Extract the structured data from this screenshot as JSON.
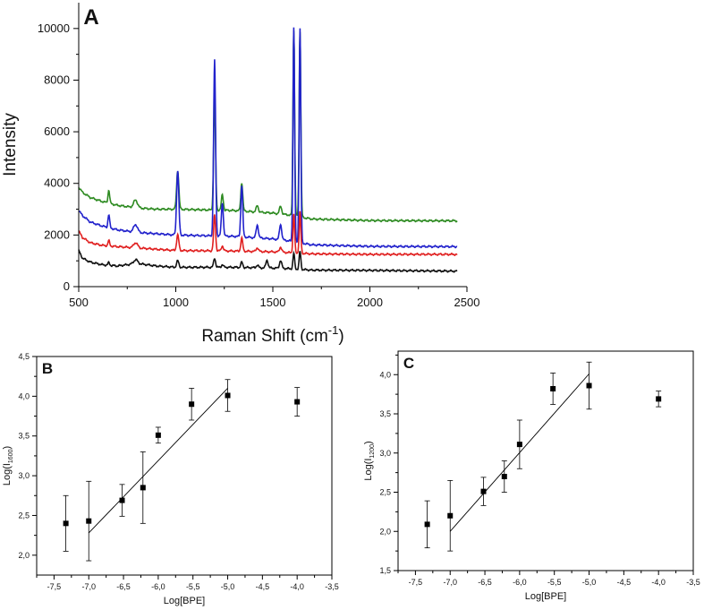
{
  "chart_data": [
    {
      "id": "A",
      "type": "line",
      "panel_label": "A",
      "title": "",
      "xlabel_text": "Raman Shift (cm",
      "xlabel_sup": "-1",
      "xlabel_close": ")",
      "ylabel": "Intensity",
      "xlim": [
        500,
        2500
      ],
      "ylim": [
        0,
        11000
      ],
      "xticks": [
        500,
        1000,
        1500,
        2000,
        2500
      ],
      "yticks": [
        0,
        2000,
        4000,
        6000,
        8000,
        10000
      ],
      "grid": false,
      "legend": "none",
      "series": [
        {
          "name": "green",
          "color": "#2e8b22",
          "baseline": 2550,
          "x": [
            500,
            520,
            560,
            620,
            700,
            800,
            900,
            1000,
            1300,
            1500,
            1580,
            1700,
            2000,
            2450
          ],
          "y": [
            3850,
            3650,
            3450,
            3300,
            3150,
            3050,
            3000,
            3000,
            2950,
            2850,
            2780,
            2620,
            2560,
            2550
          ],
          "peaks": [
            [
              655,
              500,
              6
            ],
            [
              793,
              300,
              14
            ],
            [
              1010,
              1500,
              8
            ],
            [
              1200,
              4300,
              7
            ],
            [
              1240,
              600,
              7
            ],
            [
              1340,
              1100,
              7
            ],
            [
              1420,
              250,
              8
            ],
            [
              1540,
              300,
              8
            ],
            [
              1608,
              7200,
              6
            ],
            [
              1640,
              7200,
              6
            ]
          ]
        },
        {
          "name": "blue",
          "color": "#2222cc",
          "baseline": 1550,
          "x": [
            500,
            520,
            560,
            620,
            700,
            800,
            900,
            1000,
            1300,
            1500,
            1580,
            1700,
            2000,
            2450
          ],
          "y": [
            2950,
            2750,
            2500,
            2350,
            2200,
            2100,
            2050,
            2000,
            1950,
            1850,
            1780,
            1620,
            1560,
            1550
          ],
          "peaks": [
            [
              655,
              500,
              6
            ],
            [
              793,
              300,
              14
            ],
            [
              1010,
              2500,
              8
            ],
            [
              1200,
              6800,
              7
            ],
            [
              1240,
              1300,
              7
            ],
            [
              1340,
              2000,
              7
            ],
            [
              1420,
              500,
              8
            ],
            [
              1540,
              600,
              8
            ],
            [
              1608,
              8300,
              6
            ],
            [
              1640,
              8300,
              6
            ]
          ]
        },
        {
          "name": "red",
          "color": "#e02020",
          "baseline": 1250,
          "x": [
            500,
            520,
            560,
            620,
            700,
            800,
            900,
            1000,
            1300,
            1500,
            1580,
            1700,
            2000,
            2450
          ],
          "y": [
            2150,
            1900,
            1700,
            1600,
            1550,
            1500,
            1450,
            1400,
            1380,
            1350,
            1320,
            1270,
            1250,
            1250
          ],
          "peaks": [
            [
              655,
              200,
              6
            ],
            [
              793,
              200,
              14
            ],
            [
              1010,
              600,
              8
            ],
            [
              1200,
              1400,
              7
            ],
            [
              1240,
              200,
              7
            ],
            [
              1340,
              500,
              7
            ],
            [
              1420,
              150,
              8
            ],
            [
              1540,
              200,
              8
            ],
            [
              1608,
              1500,
              6
            ],
            [
              1640,
              1600,
              6
            ]
          ]
        },
        {
          "name": "black",
          "color": "#111111",
          "baseline": 600,
          "x": [
            500,
            520,
            560,
            620,
            700,
            800,
            900,
            1000,
            1300,
            1500,
            1580,
            1700,
            2000,
            2450
          ],
          "y": [
            1400,
            1100,
            950,
            850,
            800,
            900,
            800,
            750,
            750,
            720,
            700,
            640,
            630,
            600
          ],
          "peaks": [
            [
              655,
              100,
              6
            ],
            [
              793,
              150,
              14
            ],
            [
              1010,
              250,
              8
            ],
            [
              1200,
              350,
              7
            ],
            [
              1240,
              100,
              7
            ],
            [
              1340,
              200,
              7
            ],
            [
              1420,
              100,
              8
            ],
            [
              1470,
              300,
              8
            ],
            [
              1540,
              300,
              8
            ],
            [
              1608,
              600,
              6
            ],
            [
              1640,
              700,
              6
            ]
          ]
        }
      ]
    },
    {
      "id": "B",
      "type": "scatter",
      "panel_label": "B",
      "title": "",
      "xlabel": "Log[BPE]",
      "ylabel_main": "Log(I",
      "ylabel_sub": "1600",
      "ylabel_close": ")",
      "xlim": [
        -7.75,
        -3.5
      ],
      "ylim": [
        1.75,
        4.5
      ],
      "xticks": [
        -7.5,
        -7.0,
        -6.5,
        -6.0,
        -5.5,
        -5.0,
        -4.5,
        -4.0,
        -3.5
      ],
      "xtick_labels": [
        "-7,5",
        "-7,0",
        "-6,5",
        "-6,0",
        "-5,5",
        "-5,0",
        "-4,5",
        "-4,0",
        "-3,5"
      ],
      "yticks": [
        2.0,
        2.5,
        3.0,
        3.5,
        4.0,
        4.5
      ],
      "ytick_labels": [
        "2,0",
        "2,5",
        "3,0",
        "3,5",
        "4,0",
        "4,5"
      ],
      "points": [
        {
          "x": -7.33,
          "y": 2.4,
          "err": 0.35
        },
        {
          "x": -7.0,
          "y": 2.43,
          "err": 0.5
        },
        {
          "x": -6.52,
          "y": 2.69,
          "err": 0.2
        },
        {
          "x": -6.22,
          "y": 2.85,
          "err": 0.45
        },
        {
          "x": -6.0,
          "y": 3.51,
          "err": 0.1
        },
        {
          "x": -5.52,
          "y": 3.9,
          "err": 0.2
        },
        {
          "x": -5.0,
          "y": 4.01,
          "err": 0.2
        },
        {
          "x": -4.0,
          "y": 3.93,
          "err": 0.18
        }
      ],
      "fit_line": {
        "x": [
          -7.0,
          -5.0
        ],
        "y": [
          2.28,
          4.1
        ]
      }
    },
    {
      "id": "C",
      "type": "scatter",
      "panel_label": "C",
      "title": "",
      "xlabel": "Log[BPE]",
      "ylabel_main": "Log(I",
      "ylabel_sub": "1200",
      "ylabel_close": ")",
      "xlim": [
        -7.75,
        -3.5
      ],
      "ylim": [
        1.5,
        4.3
      ],
      "xticks": [
        -7.5,
        -7.0,
        -6.5,
        -6.0,
        -5.5,
        -5.0,
        -4.5,
        -4.0,
        -3.5
      ],
      "xtick_labels": [
        "-7,5",
        "-7,0",
        "-6,5",
        "-6,0",
        "-5,5",
        "-5,0",
        "-4,5",
        "-4,0",
        "-3,5"
      ],
      "yticks": [
        1.5,
        2.0,
        2.5,
        3.0,
        3.5,
        4.0
      ],
      "ytick_labels": [
        "1,5",
        "2,0",
        "2,5",
        "3,0",
        "3,5",
        "4,0"
      ],
      "points": [
        {
          "x": -7.33,
          "y": 2.09,
          "err": 0.3
        },
        {
          "x": -7.0,
          "y": 2.2,
          "err": 0.45
        },
        {
          "x": -6.52,
          "y": 2.51,
          "err": 0.18
        },
        {
          "x": -6.22,
          "y": 2.7,
          "err": 0.2
        },
        {
          "x": -6.0,
          "y": 3.11,
          "err": 0.31
        },
        {
          "x": -5.52,
          "y": 3.82,
          "err": 0.2
        },
        {
          "x": -5.0,
          "y": 3.86,
          "err": 0.3
        },
        {
          "x": -4.0,
          "y": 3.69,
          "err": 0.1
        }
      ],
      "fit_line": {
        "x": [
          -7.0,
          -5.0
        ],
        "y": [
          2.0,
          4.01
        ]
      }
    }
  ]
}
